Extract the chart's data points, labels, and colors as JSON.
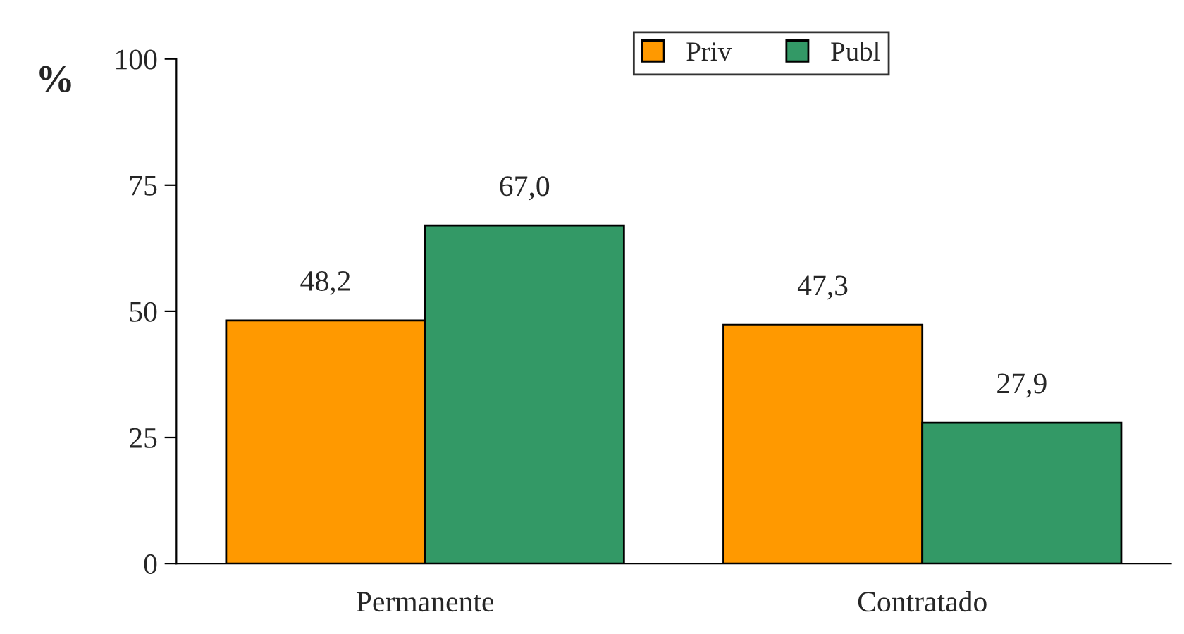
{
  "chart_data": {
    "type": "bar",
    "ylabel": "%",
    "categories": [
      "Permanente",
      "Contratado"
    ],
    "series": [
      {
        "name": "Priv",
        "color": "#ff9900",
        "values": [
          48.2,
          47.3
        ],
        "value_labels": [
          "48,2",
          "47,3"
        ]
      },
      {
        "name": "Publ",
        "color": "#339966",
        "values": [
          67.0,
          27.9
        ],
        "value_labels": [
          "67,0",
          "27,9"
        ]
      }
    ],
    "ylim": [
      0,
      100
    ],
    "yticks": [
      0,
      25,
      50,
      75,
      100
    ],
    "grid": false,
    "legend": "top right"
  }
}
